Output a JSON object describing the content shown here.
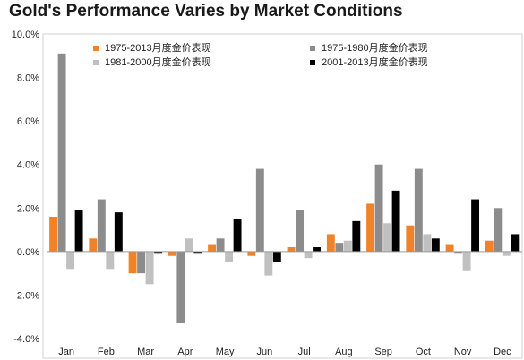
{
  "chart_data": {
    "type": "bar",
    "title": "Gold's Performance Varies by Market Conditions",
    "xlabel": "",
    "ylabel": "",
    "ylim": [
      -4,
      10
    ],
    "yticks": [
      -4,
      -2,
      0,
      2,
      4,
      6,
      8,
      10
    ],
    "ytick_labels": [
      "-4.0%",
      "-2.0%",
      "0.0%",
      "2.0%",
      "4.0%",
      "6.0%",
      "8.0%",
      "10.0%"
    ],
    "grid": false,
    "legend_position": "top",
    "categories": [
      "Jan",
      "Feb",
      "Mar",
      "Apr",
      "May",
      "Jun",
      "Jul",
      "Aug",
      "Sep",
      "Oct",
      "Nov",
      "Dec"
    ],
    "series": [
      {
        "name": "1975-2013月度金价表现",
        "color": "#f0822a",
        "values": [
          1.6,
          0.6,
          -1.0,
          -0.2,
          0.3,
          -0.2,
          0.2,
          0.8,
          2.2,
          1.2,
          0.3,
          0.5
        ]
      },
      {
        "name": "1975-1980月度金价表现",
        "color": "#8c8c8c",
        "values": [
          9.1,
          2.4,
          -1.0,
          -3.3,
          0.6,
          3.8,
          1.9,
          0.4,
          4.0,
          3.8,
          -0.1,
          2.0
        ]
      },
      {
        "name": "1981-2000月度金价表现",
        "color": "#c0c0c0",
        "values": [
          -0.8,
          -0.8,
          -1.5,
          0.6,
          -0.5,
          -1.1,
          -0.3,
          0.5,
          1.3,
          0.8,
          -0.9,
          -0.2
        ]
      },
      {
        "name": "2001-2013月度金价表现",
        "color": "#000000",
        "values": [
          1.9,
          1.8,
          -0.1,
          -0.1,
          1.5,
          -0.5,
          0.2,
          1.4,
          2.8,
          0.6,
          2.4,
          0.8
        ]
      }
    ]
  }
}
